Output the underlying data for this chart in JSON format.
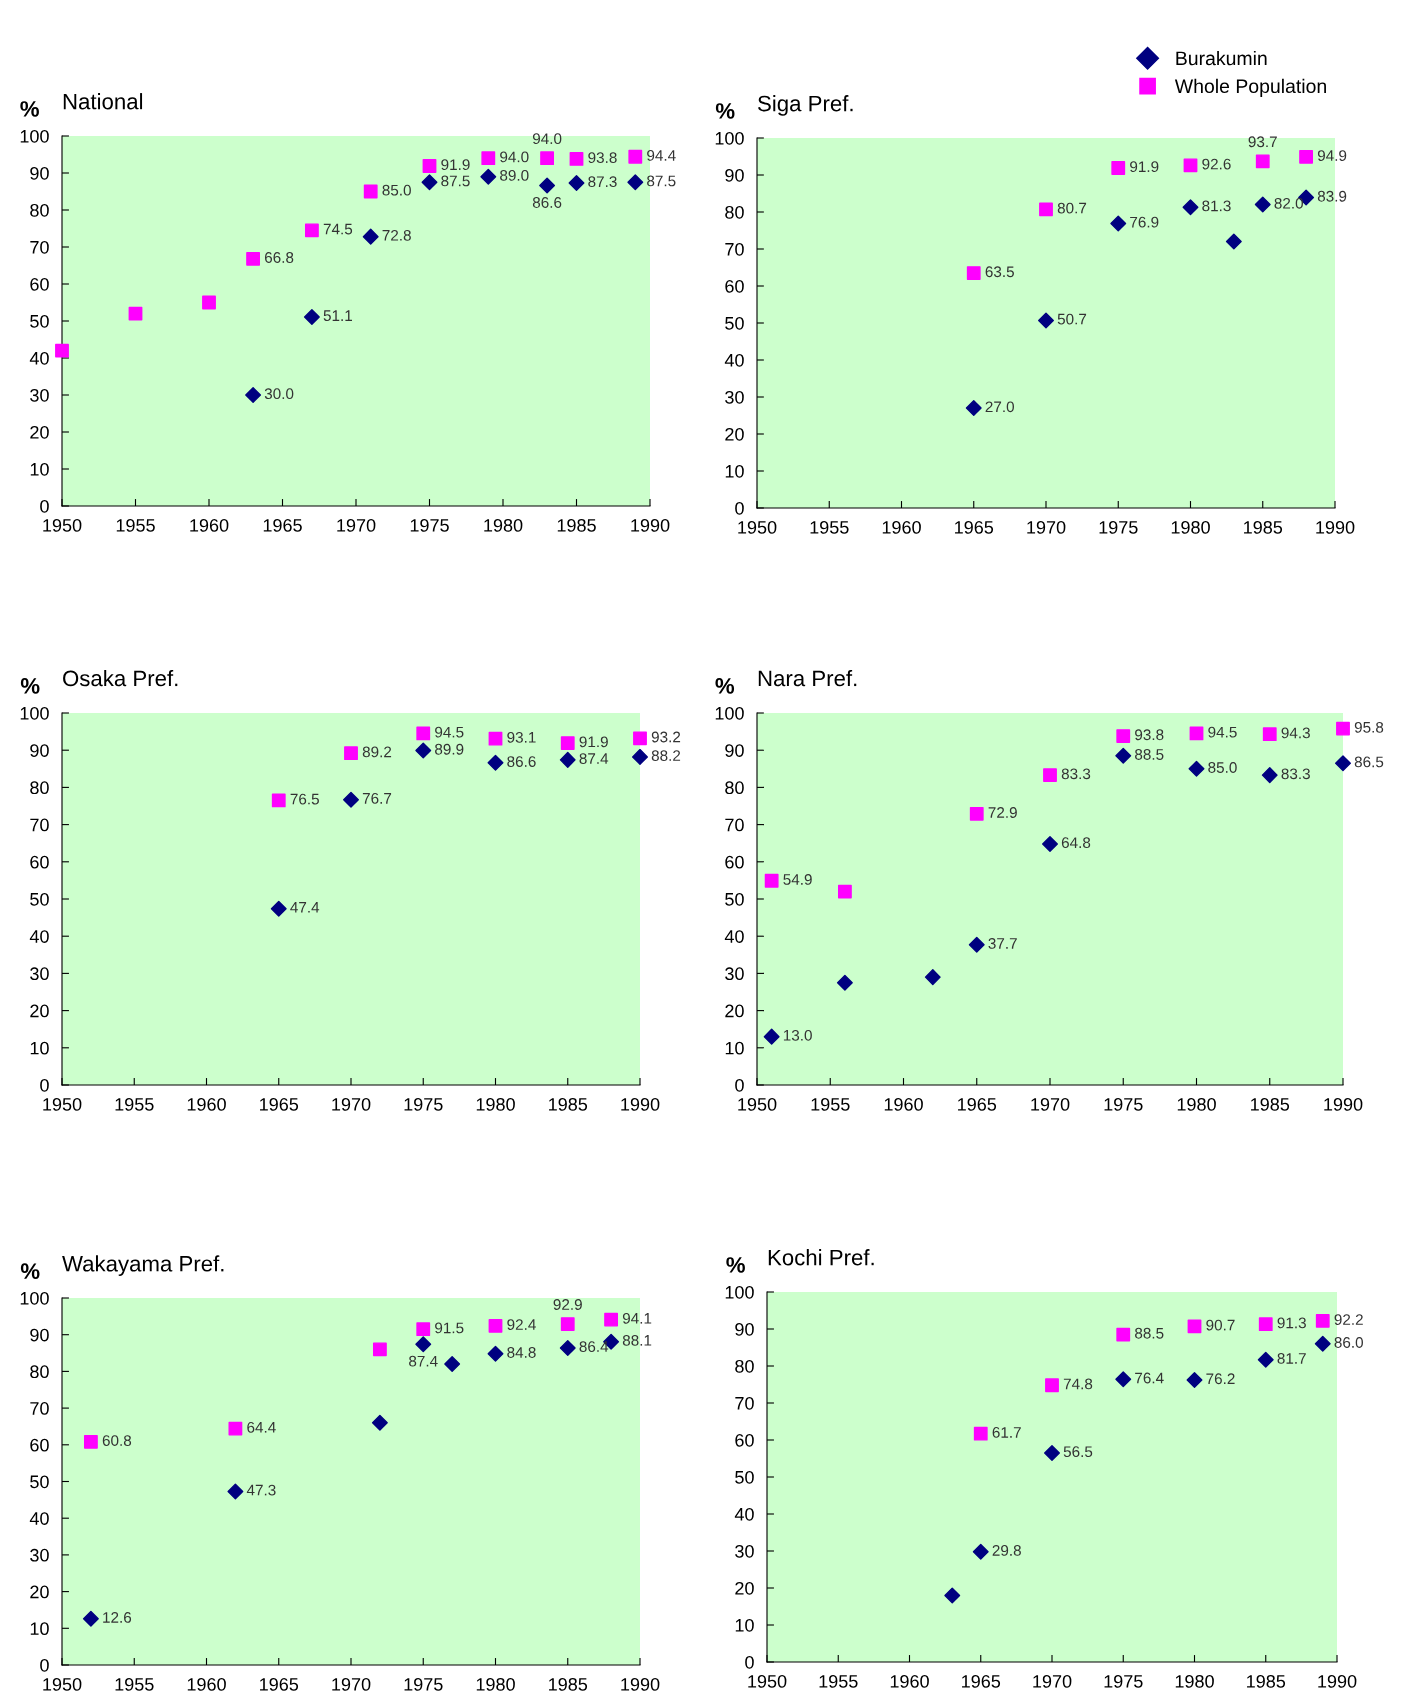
{
  "chart_data": [
    {
      "type": "scatter",
      "title": "National",
      "ylabel": "%",
      "xlim": [
        1950,
        1990
      ],
      "xticks": [
        1950,
        1955,
        1960,
        1965,
        1970,
        1975,
        1980,
        1985,
        1990
      ],
      "ylim": [
        0,
        100
      ],
      "yticks": [
        0,
        10,
        20,
        30,
        40,
        50,
        60,
        70,
        80,
        90,
        100
      ],
      "grid": false,
      "series": [
        {
          "color": "#000080",
          "marker": "diamond",
          "x": [
            1963,
            1967,
            1971,
            1975,
            1979,
            1983,
            1985,
            1989
          ],
          "values": [
            30.0,
            51.1,
            72.8,
            87.5,
            89.0,
            86.6,
            87.3,
            87.5
          ],
          "value_labels": [
            "30.0",
            "51.1",
            "72.8",
            "87.5",
            "89.0",
            "86.6",
            "87.3",
            "87.5"
          ]
        },
        {
          "color": "#ff00ff",
          "marker": "square",
          "x": [
            1950,
            1955,
            1960,
            1963,
            1967,
            1971,
            1975,
            1979,
            1983,
            1985,
            1989
          ],
          "values": [
            42,
            52,
            55,
            66.8,
            74.5,
            85.0,
            91.9,
            94.0,
            94.0,
            93.8,
            94.4
          ],
          "value_labels": [
            null,
            null,
            null,
            "66.8",
            "74.5",
            "85.0",
            "91.9",
            "94.0",
            "94.0",
            "93.8",
            "94.4"
          ]
        }
      ]
    },
    {
      "type": "scatter",
      "title": "Siga Pref.",
      "ylabel": "%",
      "xlim": [
        1950,
        1990
      ],
      "xticks": [
        1950,
        1955,
        1960,
        1965,
        1970,
        1975,
        1980,
        1985,
        1990
      ],
      "ylim": [
        0,
        100
      ],
      "yticks": [
        0,
        10,
        20,
        30,
        40,
        50,
        60,
        70,
        80,
        90,
        100
      ],
      "grid": false,
      "legend": "top right",
      "series": [
        {
          "name": "Burakumin",
          "color": "#000080",
          "marker": "diamond",
          "x": [
            1965,
            1970,
            1975,
            1980,
            1983,
            1985,
            1988
          ],
          "values": [
            27.0,
            50.7,
            76.9,
            81.3,
            72,
            82.0,
            83.9
          ],
          "value_labels": [
            "27.0",
            "50.7",
            "76.9",
            "81.3",
            null,
            "82.0",
            "83.9"
          ]
        },
        {
          "name": "Whole Population",
          "color": "#ff00ff",
          "marker": "square",
          "x": [
            1965,
            1970,
            1975,
            1980,
            1985,
            1988
          ],
          "values": [
            63.5,
            80.7,
            91.9,
            92.6,
            93.7,
            94.9
          ],
          "value_labels": [
            "63.5",
            "80.7",
            "91.9",
            "92.6",
            "93.7",
            "94.9"
          ]
        }
      ]
    },
    {
      "type": "scatter",
      "title": "Osaka Pref.",
      "ylabel": "%",
      "xlim": [
        1950,
        1990
      ],
      "xticks": [
        1950,
        1955,
        1960,
        1965,
        1970,
        1975,
        1980,
        1985,
        1990
      ],
      "ylim": [
        0,
        100
      ],
      "yticks": [
        0,
        10,
        20,
        30,
        40,
        50,
        60,
        70,
        80,
        90,
        100
      ],
      "grid": false,
      "series": [
        {
          "color": "#000080",
          "marker": "diamond",
          "x": [
            1965,
            1970,
            1975,
            1980,
            1985,
            1990
          ],
          "values": [
            47.4,
            76.7,
            89.9,
            86.6,
            87.4,
            88.2
          ],
          "value_labels": [
            "47.4",
            "76.7",
            "89.9",
            "86.6",
            "87.4",
            "88.2"
          ]
        },
        {
          "color": "#ff00ff",
          "marker": "square",
          "x": [
            1965,
            1970,
            1975,
            1980,
            1985,
            1990
          ],
          "values": [
            76.5,
            89.2,
            94.5,
            93.1,
            91.9,
            93.2
          ],
          "value_labels": [
            "76.5",
            "89.2",
            "94.5",
            "93.1",
            "91.9",
            "93.2"
          ]
        }
      ]
    },
    {
      "type": "scatter",
      "title": "Nara Pref.",
      "ylabel": "%",
      "xlim": [
        1950,
        1990
      ],
      "xticks": [
        1950,
        1955,
        1960,
        1965,
        1970,
        1975,
        1980,
        1985,
        1990
      ],
      "ylim": [
        0,
        100
      ],
      "yticks": [
        0,
        10,
        20,
        30,
        40,
        50,
        60,
        70,
        80,
        90,
        100
      ],
      "grid": false,
      "series": [
        {
          "color": "#000080",
          "marker": "diamond",
          "x": [
            1951,
            1956,
            1962,
            1965,
            1970,
            1975,
            1980,
            1985,
            1990
          ],
          "values": [
            13.0,
            27.5,
            29,
            37.7,
            64.8,
            88.5,
            85.0,
            83.3,
            86.5
          ],
          "value_labels": [
            "13.0",
            null,
            null,
            "37.7",
            "64.8",
            "88.5",
            "85.0",
            "83.3",
            "86.5"
          ]
        },
        {
          "color": "#ff00ff",
          "marker": "square",
          "x": [
            1951,
            1956,
            1965,
            1970,
            1975,
            1980,
            1985,
            1990
          ],
          "values": [
            54.9,
            52,
            72.9,
            83.3,
            93.8,
            94.5,
            94.3,
            95.8
          ],
          "value_labels": [
            "54.9",
            null,
            "72.9",
            "83.3",
            "93.8",
            "94.5",
            "94.3",
            "95.8"
          ]
        }
      ]
    },
    {
      "type": "scatter",
      "title": "Wakayama Pref.",
      "ylabel": "%",
      "xlim": [
        1950,
        1990
      ],
      "xticks": [
        1950,
        1955,
        1960,
        1965,
        1970,
        1975,
        1980,
        1985,
        1990
      ],
      "ylim": [
        0,
        100
      ],
      "yticks": [
        0,
        10,
        20,
        30,
        40,
        50,
        60,
        70,
        80,
        90,
        100
      ],
      "grid": false,
      "series": [
        {
          "color": "#000080",
          "marker": "diamond",
          "x": [
            1952,
            1962,
            1972,
            1975,
            1977,
            1980,
            1985,
            1988
          ],
          "values": [
            12.6,
            47.3,
            66,
            87.4,
            82,
            84.8,
            86.4,
            88.1
          ],
          "value_labels": [
            "12.6",
            "47.3",
            null,
            "87.4",
            null,
            "84.8",
            "86.4",
            "88.1"
          ]
        },
        {
          "color": "#ff00ff",
          "marker": "square",
          "x": [
            1952,
            1962,
            1972,
            1975,
            1980,
            1985,
            1988
          ],
          "values": [
            60.8,
            64.4,
            86,
            91.5,
            92.4,
            92.9,
            94.1
          ],
          "value_labels": [
            "60.8",
            "64.4",
            null,
            "91.5",
            "92.4",
            "92.9",
            "94.1"
          ]
        }
      ]
    },
    {
      "type": "scatter",
      "title": "Kochi Pref.",
      "ylabel": "%",
      "xlim": [
        1950,
        1990
      ],
      "xticks": [
        1950,
        1955,
        1960,
        1965,
        1970,
        1975,
        1980,
        1985,
        1990
      ],
      "ylim": [
        0,
        100
      ],
      "yticks": [
        0,
        10,
        20,
        30,
        40,
        50,
        60,
        70,
        80,
        90,
        100
      ],
      "grid": false,
      "series": [
        {
          "color": "#000080",
          "marker": "diamond",
          "x": [
            1963,
            1965,
            1970,
            1975,
            1980,
            1985,
            1989
          ],
          "values": [
            18,
            29.8,
            56.5,
            76.4,
            76.2,
            81.7,
            86.0
          ],
          "value_labels": [
            null,
            "29.8",
            "56.5",
            "76.4",
            "76.2",
            "81.7",
            "86.0"
          ]
        },
        {
          "color": "#ff00ff",
          "marker": "square",
          "x": [
            1965,
            1970,
            1975,
            1980,
            1985,
            1989
          ],
          "values": [
            61.7,
            74.8,
            88.5,
            90.7,
            91.3,
            92.2
          ],
          "value_labels": [
            "61.7",
            "74.8",
            "88.5",
            "90.7",
            "91.3",
            "92.2"
          ]
        }
      ]
    }
  ]
}
